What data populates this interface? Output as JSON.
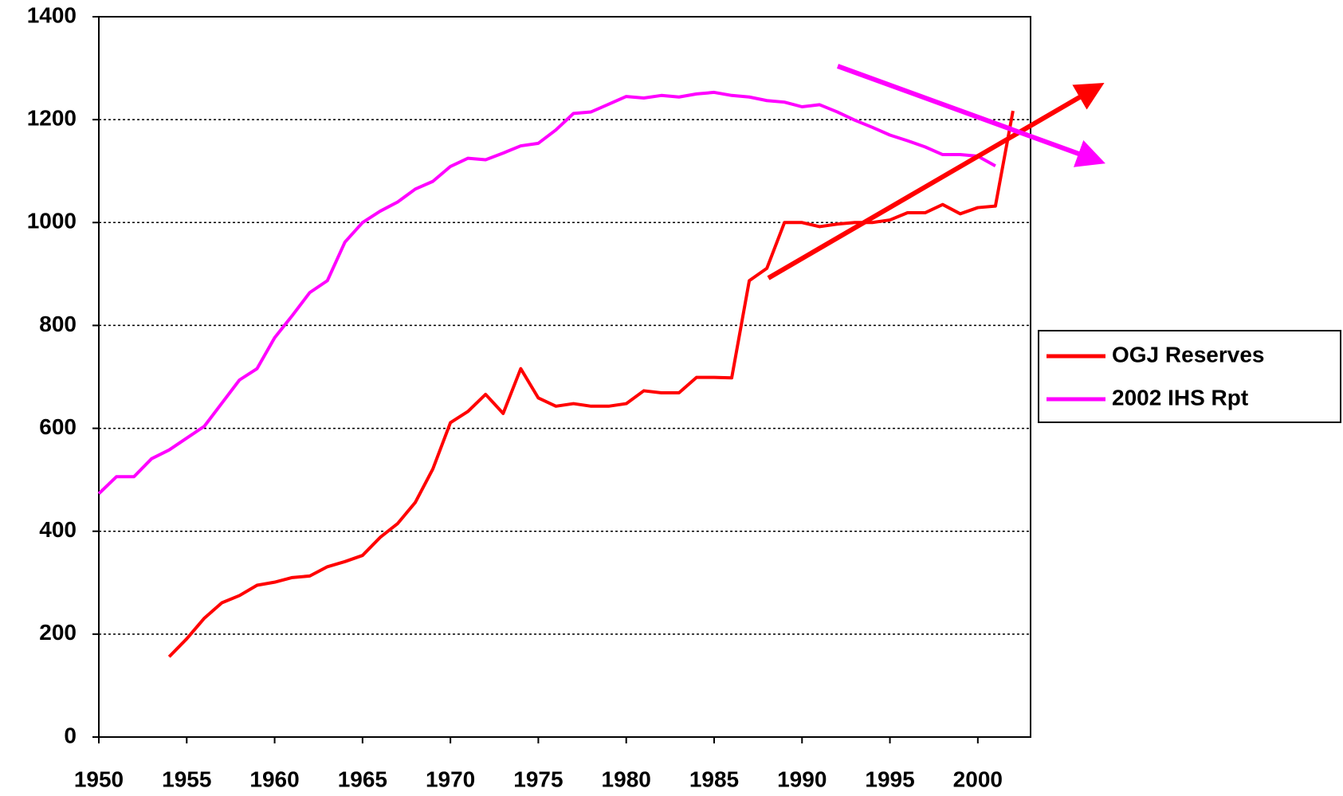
{
  "chart_data": {
    "type": "line",
    "x": [
      1950,
      1951,
      1952,
      1953,
      1954,
      1955,
      1956,
      1957,
      1958,
      1959,
      1960,
      1961,
      1962,
      1963,
      1964,
      1965,
      1966,
      1967,
      1968,
      1969,
      1970,
      1971,
      1972,
      1973,
      1974,
      1975,
      1976,
      1977,
      1978,
      1979,
      1980,
      1981,
      1982,
      1983,
      1984,
      1985,
      1986,
      1987,
      1988,
      1989,
      1990,
      1991,
      1992,
      1993,
      1994,
      1995,
      1996,
      1997,
      1998,
      1999,
      2000,
      2001,
      2002
    ],
    "series": [
      {
        "name": "OGJ Reserves",
        "color": "#ff0000",
        "values": [
          null,
          null,
          null,
          null,
          156,
          191,
          231,
          261,
          275,
          295,
          301,
          310,
          313,
          331,
          341,
          353,
          388,
          415,
          456,
          521,
          611,
          633,
          666,
          629,
          716,
          659,
          643,
          648,
          643,
          643,
          648,
          673,
          669,
          669,
          699,
          699,
          698,
          887,
          911,
          1000,
          1000,
          992,
          997,
          1000,
          1000,
          1005,
          1019,
          1019,
          1035,
          1017,
          1029,
          1032,
          1217
        ]
      },
      {
        "name": "2002 IHS Rpt",
        "color": "#ff00ff",
        "values": [
          473,
          506,
          506,
          541,
          558,
          581,
          604,
          649,
          694,
          716,
          776,
          819,
          864,
          887,
          962,
          1000,
          1022,
          1040,
          1065,
          1080,
          1109,
          1125,
          1122,
          1135,
          1149,
          1154,
          1180,
          1212,
          1215,
          1230,
          1245,
          1242,
          1247,
          1244,
          1250,
          1253,
          1247,
          1244,
          1237,
          1234,
          1225,
          1229,
          1215,
          1199,
          1185,
          1170,
          1159,
          1147,
          1132,
          1132,
          1129,
          1110,
          null
        ]
      }
    ],
    "xlim": [
      1950,
      2003
    ],
    "xticks": [
      1950,
      1955,
      1960,
      1965,
      1970,
      1975,
      1980,
      1985,
      1990,
      1995,
      2000
    ],
    "ylim": [
      0,
      1400
    ],
    "yticks": [
      0,
      200,
      400,
      600,
      800,
      1000,
      1200,
      1400
    ],
    "grid": true,
    "legend": "right"
  }
}
